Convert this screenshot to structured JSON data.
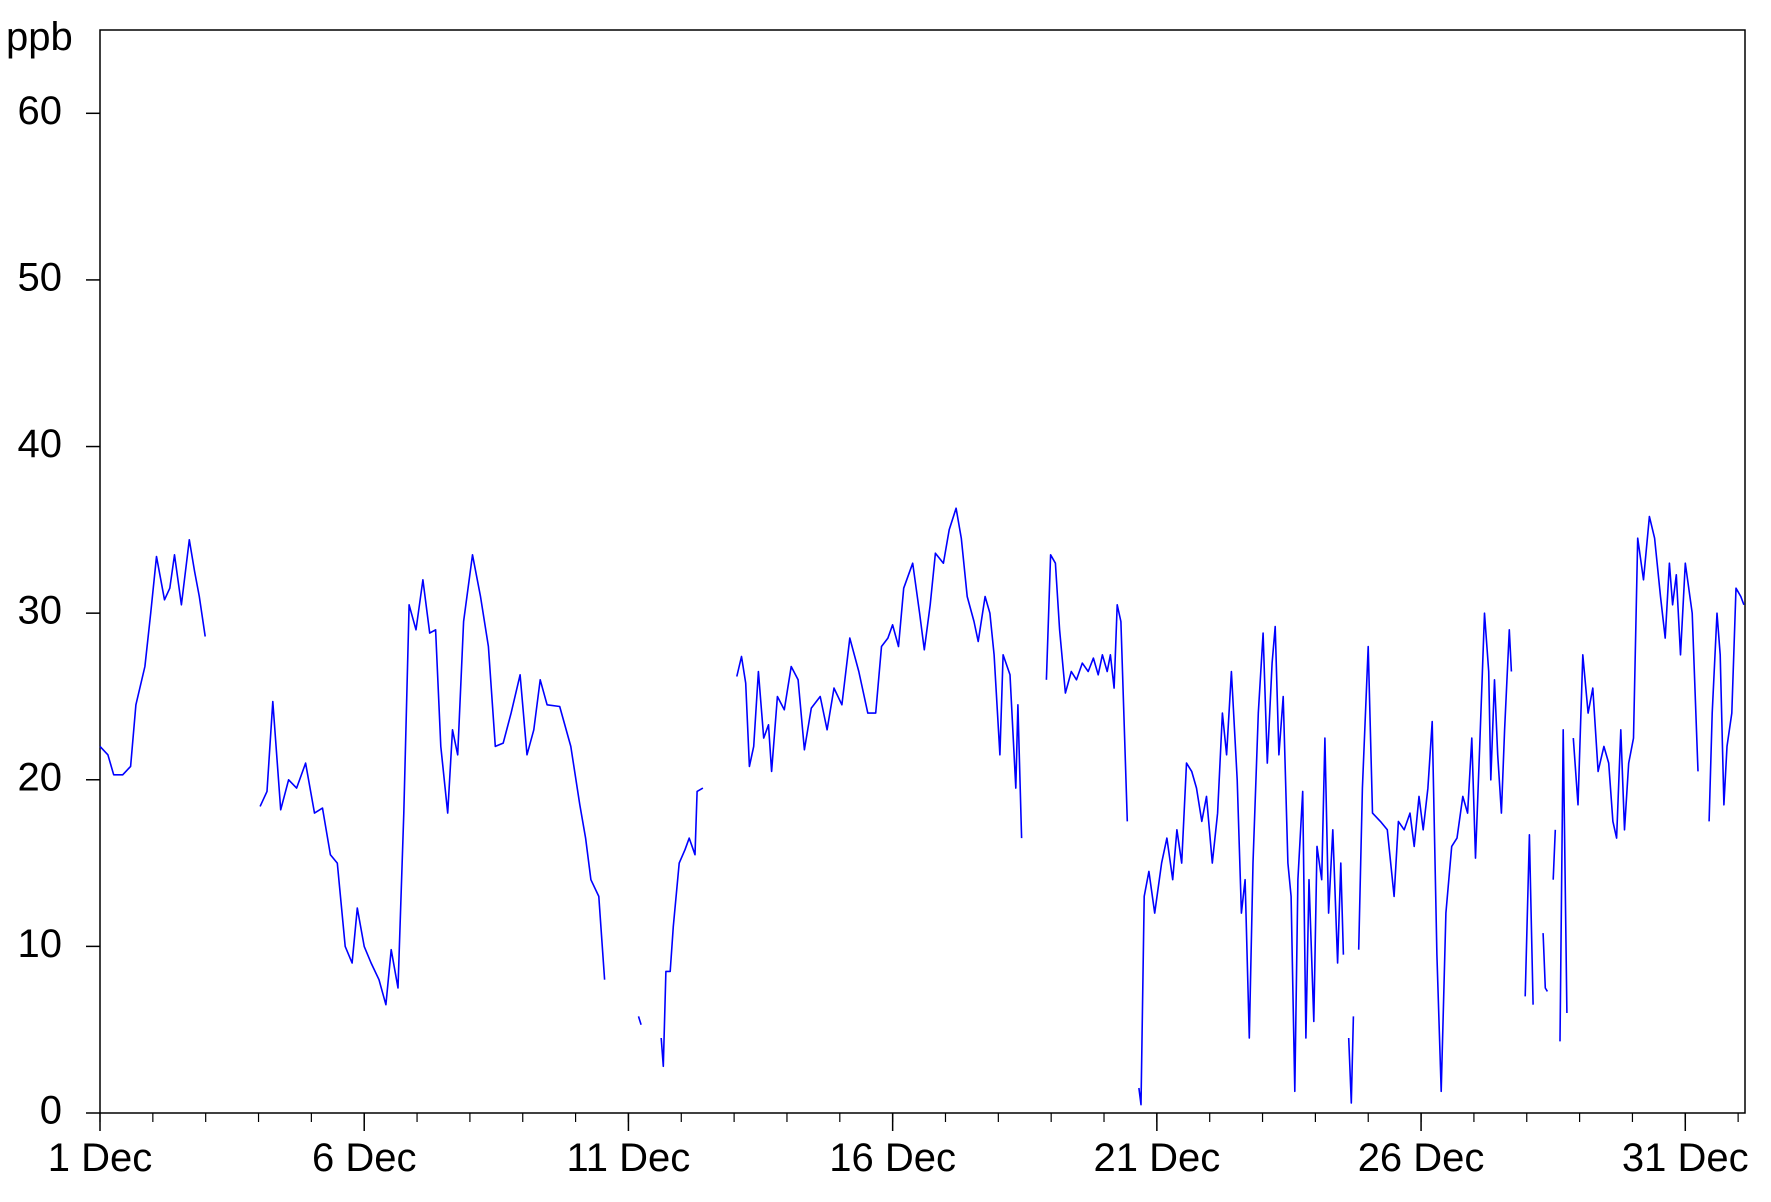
{
  "chart_data": {
    "type": "line",
    "y_label": "ppb",
    "xlim": [
      1,
      32.13
    ],
    "xticks": [
      {
        "value": 1,
        "label": "1 Dec"
      },
      {
        "value": 6,
        "label": "6 Dec"
      },
      {
        "value": 11,
        "label": "11 Dec"
      },
      {
        "value": 16,
        "label": "16 Dec"
      },
      {
        "value": 21,
        "label": "21 Dec"
      },
      {
        "value": 26,
        "label": "26 Dec"
      },
      {
        "value": 31,
        "label": "31 Dec"
      }
    ],
    "ylim": [
      0,
      65
    ],
    "yticks": [
      0,
      10,
      20,
      30,
      40,
      50,
      60
    ],
    "series": [
      {
        "color": "#0000ff",
        "x": [
          1.0,
          1.15,
          1.26,
          1.43,
          1.58,
          1.68,
          1.85,
          1.96,
          2.07,
          2.22,
          2.32,
          2.41,
          2.54,
          2.69,
          2.79,
          2.88,
          2.99,
          3.5,
          4.03,
          4.16,
          4.27,
          4.42,
          4.57,
          4.72,
          4.89,
          5.06,
          5.21,
          5.36,
          5.49,
          5.64,
          5.77,
          5.87,
          6.0,
          6.13,
          6.28,
          6.41,
          6.51,
          6.64,
          6.75,
          6.85,
          6.98,
          7.11,
          7.24,
          7.35,
          7.45,
          7.58,
          7.67,
          7.77,
          7.88,
          8.05,
          8.2,
          8.35,
          8.48,
          8.63,
          8.78,
          8.95,
          9.08,
          9.21,
          9.33,
          9.46,
          9.7,
          9.91,
          10.08,
          10.19,
          10.29,
          10.44,
          10.55,
          10.9,
          11.19,
          11.24,
          11.4,
          11.62,
          11.66,
          11.71,
          11.79,
          11.85,
          11.96,
          12.07,
          12.15,
          12.26,
          12.3,
          12.41,
          12.7,
          13.05,
          13.14,
          13.22,
          13.29,
          13.37,
          13.46,
          13.56,
          13.65,
          13.71,
          13.82,
          13.95,
          14.08,
          14.21,
          14.33,
          14.46,
          14.63,
          14.76,
          14.89,
          15.04,
          15.19,
          15.36,
          15.53,
          15.68,
          15.79,
          15.91,
          16.0,
          16.11,
          16.21,
          16.38,
          16.51,
          16.6,
          16.71,
          16.81,
          16.96,
          17.07,
          17.2,
          17.3,
          17.41,
          17.54,
          17.62,
          17.75,
          17.84,
          17.92,
          18.03,
          18.09,
          18.22,
          18.33,
          18.37,
          18.44,
          18.7,
          18.91,
          18.99,
          19.08,
          19.16,
          19.27,
          19.38,
          19.48,
          19.59,
          19.7,
          19.8,
          19.89,
          19.97,
          20.06,
          20.12,
          20.19,
          20.25,
          20.32,
          20.38,
          20.44,
          20.55,
          20.66,
          20.7,
          20.76,
          20.85,
          20.96,
          21.09,
          21.19,
          21.3,
          21.38,
          21.47,
          21.56,
          21.66,
          21.75,
          21.85,
          21.94,
          22.05,
          22.15,
          22.24,
          22.32,
          22.41,
          22.52,
          22.6,
          22.67,
          22.75,
          22.82,
          22.92,
          23.01,
          23.09,
          23.18,
          23.24,
          23.31,
          23.39,
          23.48,
          23.54,
          23.61,
          23.67,
          23.76,
          23.82,
          23.88,
          23.97,
          24.03,
          24.12,
          24.18,
          24.25,
          24.33,
          24.42,
          24.48,
          24.53,
          24.58,
          24.63,
          24.68,
          24.72,
          24.77,
          24.82,
          24.89,
          25.0,
          25.08,
          25.23,
          25.36,
          25.49,
          25.57,
          25.68,
          25.79,
          25.87,
          25.96,
          26.04,
          26.13,
          26.21,
          26.3,
          26.38,
          26.47,
          26.58,
          26.68,
          26.79,
          26.88,
          26.96,
          27.03,
          27.11,
          27.2,
          27.28,
          27.32,
          27.39,
          27.45,
          27.52,
          27.58,
          27.67,
          27.71,
          27.85,
          27.97,
          28.05,
          28.12,
          28.2,
          28.31,
          28.35,
          28.39,
          28.45,
          28.5,
          28.54,
          28.58,
          28.63,
          28.69,
          28.76,
          28.82,
          28.88,
          28.97,
          29.06,
          29.16,
          29.25,
          29.35,
          29.46,
          29.55,
          29.63,
          29.7,
          29.78,
          29.85,
          29.93,
          30.02,
          30.1,
          30.21,
          30.32,
          30.42,
          30.53,
          30.62,
          30.7,
          30.76,
          30.83,
          30.91,
          31.0,
          31.13,
          31.24,
          31.35,
          31.45,
          31.51,
          31.6,
          31.66,
          31.73,
          31.79,
          31.88,
          31.96,
          32.05,
          32.11
        ],
        "values": [
          22,
          21.5,
          20.3,
          20.3,
          20.8,
          24.5,
          26.8,
          30,
          33.4,
          30.8,
          31.5,
          33.5,
          30.5,
          34.4,
          32.5,
          31,
          28.6,
          null,
          18.4,
          19.3,
          24.7,
          18.2,
          20,
          19.5,
          21,
          18,
          18.3,
          15.5,
          15,
          10,
          9,
          12.3,
          10,
          9,
          8,
          6.5,
          9.8,
          7.5,
          18,
          30.5,
          29,
          32,
          28.8,
          29,
          22,
          18,
          23,
          21.5,
          29.5,
          33.5,
          31,
          28,
          22,
          22.2,
          24,
          26.3,
          21.5,
          23,
          26,
          24.5,
          24.4,
          22,
          18.5,
          16.5,
          14,
          13,
          8,
          null,
          5.8,
          5.3,
          null,
          4.5,
          2.8,
          8.5,
          8.5,
          11.2,
          15,
          15.8,
          16.5,
          15.5,
          19.3,
          19.5,
          null,
          26.2,
          27.4,
          25.8,
          20.8,
          22,
          26.5,
          22.5,
          23.3,
          20.5,
          25,
          24.2,
          26.8,
          26,
          21.8,
          24.3,
          25,
          23,
          25.5,
          24.5,
          28.5,
          26.5,
          24,
          24,
          28,
          28.5,
          29.3,
          28,
          31.5,
          33,
          30,
          27.8,
          30.5,
          33.6,
          33,
          35,
          36.3,
          34.5,
          31,
          29.5,
          28.3,
          31,
          30,
          27.5,
          21.5,
          27.5,
          26.3,
          19.5,
          24.5,
          16.5,
          null,
          26,
          33.5,
          33,
          29,
          25.2,
          26.5,
          26,
          27,
          26.5,
          27.3,
          26.3,
          27.5,
          26.5,
          27.5,
          25.5,
          30.5,
          29.5,
          23.5,
          17.5,
          null,
          1.5,
          0.5,
          13,
          14.5,
          12,
          15,
          16.5,
          14,
          17,
          15,
          21,
          20.5,
          19.5,
          17.5,
          19,
          15,
          18,
          24,
          21.5,
          26.5,
          20,
          12,
          14,
          4.5,
          15,
          24,
          28.8,
          21,
          27,
          29.2,
          21.5,
          25,
          15,
          13,
          1.3,
          14,
          19.3,
          4.5,
          14,
          5.5,
          16,
          14,
          22.5,
          12,
          17,
          9,
          15,
          9.5,
          null,
          4.5,
          0.6,
          5.8,
          null,
          9.8,
          19.5,
          28,
          18,
          17.5,
          17,
          13,
          17.5,
          17,
          18,
          16,
          19,
          17,
          19.5,
          23.5,
          9.5,
          1.3,
          12,
          16,
          16.5,
          19,
          18,
          22.5,
          15.3,
          22,
          30,
          26.5,
          20,
          26,
          21.5,
          18,
          23,
          29,
          26.5,
          null,
          7,
          16.7,
          6.5,
          null,
          10.8,
          7.5,
          7.3,
          null,
          14,
          17,
          null,
          4.3,
          23,
          6,
          null,
          22.5,
          18.5,
          27.5,
          24,
          25.5,
          20.5,
          22,
          21,
          17.5,
          16.5,
          23,
          17,
          21,
          22.5,
          34.5,
          32,
          35.8,
          34.5,
          31,
          28.5,
          33,
          30.5,
          32.3,
          27.5,
          33,
          30,
          20.5,
          null,
          17.5,
          24,
          30,
          27.5,
          18.5,
          22,
          24,
          31.5,
          31,
          30.5
        ]
      }
    ]
  }
}
